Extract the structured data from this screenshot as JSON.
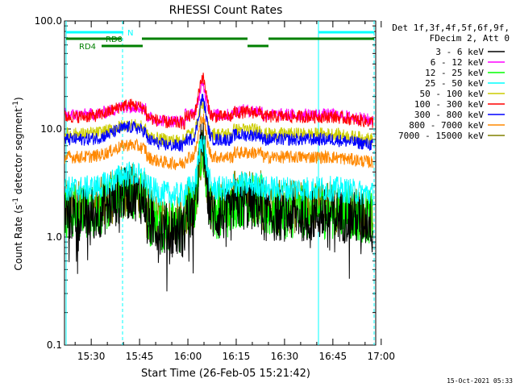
{
  "chart_data": {
    "type": "line",
    "title": "RHESSI Count Rates",
    "xlabel": "Start Time (26-Feb-05 15:21:42)",
    "ylabel_main": "Count Rate (s",
    "ylabel_sup": "-1",
    "ylabel_mid": " detector segment",
    "ylabel_sup2": "-1",
    "ylabel_end": ")",
    "y_scale": "log",
    "ylim": [
      0.1,
      100
    ],
    "xlim_minutes": [
      -38.3,
      4.0
    ],
    "x_ticks": [
      {
        "label": "15:30",
        "m": -30
      },
      {
        "label": "15:45",
        "m": -15
      },
      {
        "label": "16:00",
        "m": 0
      },
      {
        "label": "16:15",
        "m": 15
      },
      {
        "label": "16:30",
        "m": 30
      },
      {
        "label": "16:45",
        "m": 45
      },
      {
        "label": "17:00",
        "m": 60
      }
    ],
    "y_ticks": [
      {
        "label": "100.0",
        "v": 100
      },
      {
        "label": "10.0",
        "v": 10
      },
      {
        "label": "1.0",
        "v": 1
      },
      {
        "label": "0.1",
        "v": 0.1
      }
    ],
    "legend_header": [
      "Det 1f,3f,4f,5f,6f,9f,",
      "FDecim 2, Att 0"
    ],
    "legend_position": "right",
    "series": [
      {
        "name": "3 - 6 keV",
        "color": "#000000",
        "base": 1.6,
        "peak": 7.5
      },
      {
        "name": "6 - 12 keV",
        "color": "#ff00ff",
        "base": 13.5,
        "peak": 25
      },
      {
        "name": "12 - 25 keV",
        "color": "#00ff00",
        "base": 1.7,
        "peak": 7
      },
      {
        "name": "25 - 50 keV",
        "color": "#00ffff",
        "base": 2.8,
        "peak": 8
      },
      {
        "name": "50 - 100 keV",
        "color": "#cccc00",
        "base": 9,
        "peak": 17
      },
      {
        "name": "100 - 300 keV",
        "color": "#ff0000",
        "base": 13,
        "peak": 30
      },
      {
        "name": "300 - 800 keV",
        "color": "#0000ff",
        "base": 8,
        "peak": 19
      },
      {
        "name": "800 - 7000 keV",
        "color": "#ff8800",
        "base": 5.5,
        "peak": 13
      },
      {
        "name": "7000 - 15000 keV",
        "color": "#808000",
        "base": 1.9,
        "peak": 6.5
      }
    ],
    "flags": [
      {
        "label": "N",
        "color": "#00ffff"
      },
      {
        "label": "RD0",
        "color": "#008000"
      },
      {
        "label": "RD4",
        "color": "#008000"
      }
    ],
    "timestamp": "15-Oct-2021 05:33"
  }
}
